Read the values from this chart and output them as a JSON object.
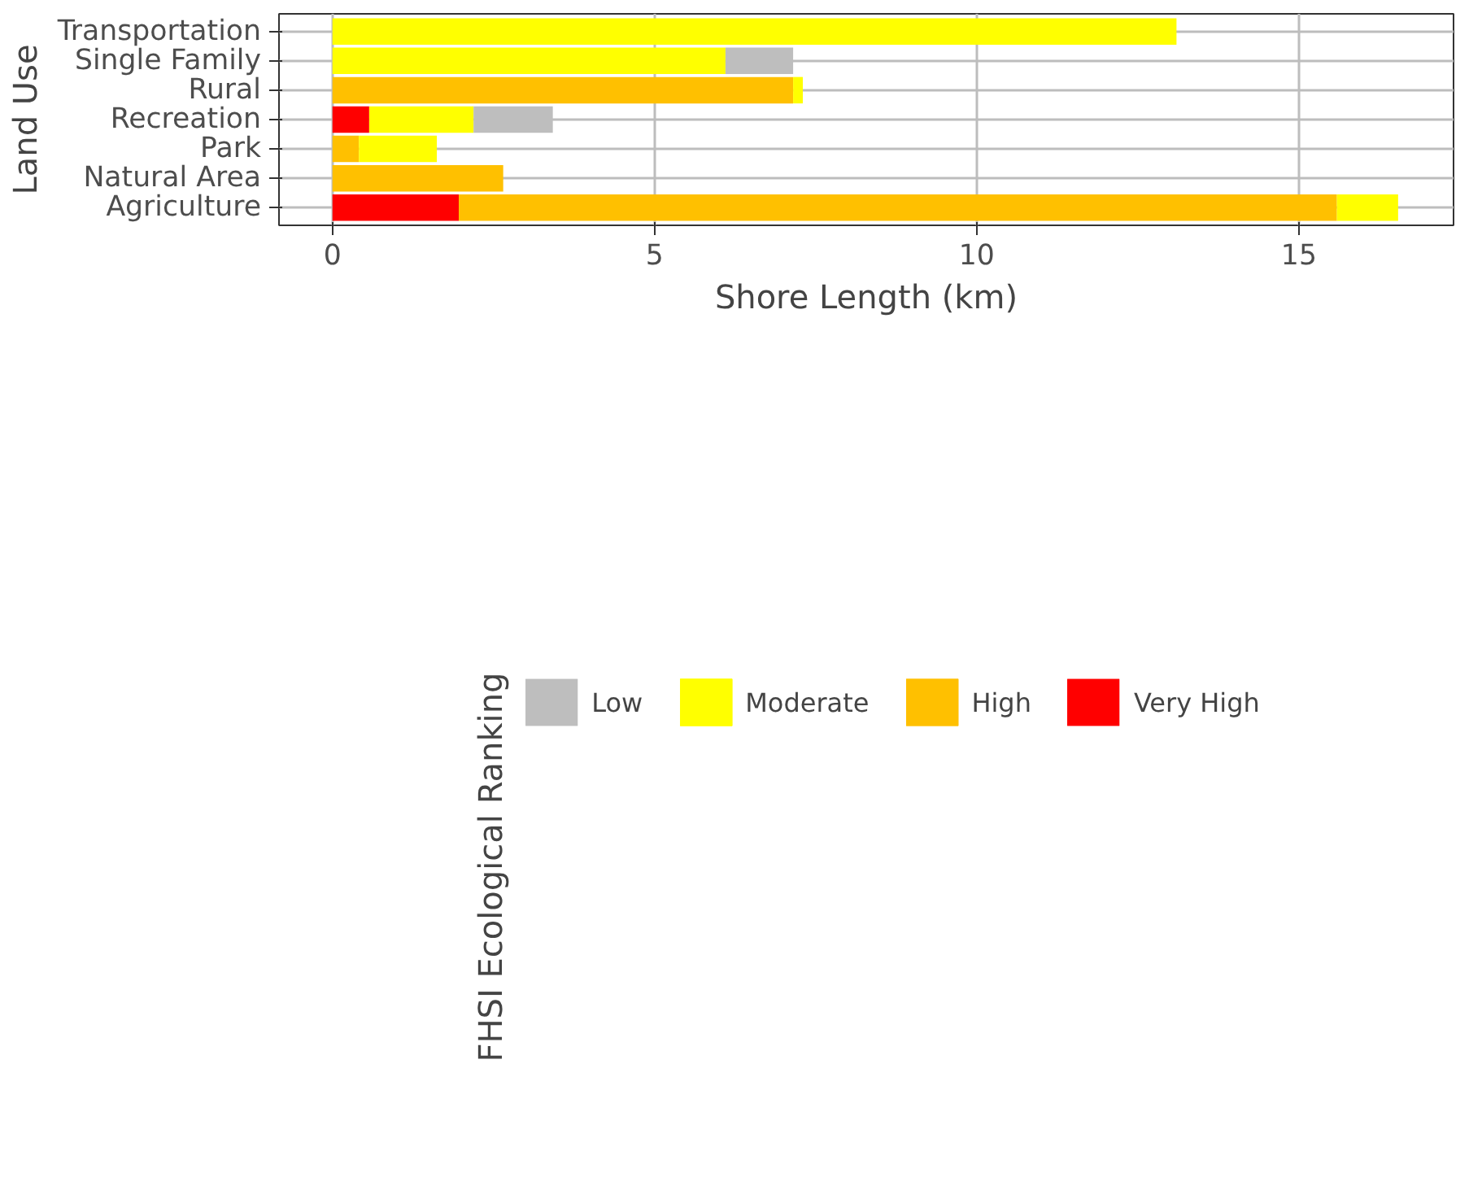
{
  "chart_data": {
    "type": "bar",
    "orientation": "horizontal",
    "stacked": true,
    "xlabel": "Shore Length (km)",
    "ylabel": "Land Use",
    "legend_title": "FHSI Ecological Ranking",
    "categories": [
      "Transportation",
      "Single Family",
      "Rural",
      "Recreation",
      "Park",
      "Natural Area",
      "Agriculture"
    ],
    "series": [
      {
        "name": "Very High",
        "color": "#ff0000",
        "values": [
          null,
          null,
          null,
          0.57,
          null,
          null,
          1.96
        ]
      },
      {
        "name": "High",
        "color": "#ffc000",
        "values": [
          null,
          null,
          7.15,
          null,
          0.41,
          2.65,
          13.63
        ]
      },
      {
        "name": "Moderate",
        "color": "#ffff00",
        "values": [
          13.1,
          6.1,
          0.15,
          1.62,
          1.21,
          null,
          0.95
        ]
      },
      {
        "name": "Low",
        "color": "#bebebe",
        "values": [
          null,
          1.05,
          null,
          1.23,
          null,
          null,
          null
        ]
      }
    ],
    "xlim": [
      -0.83,
      17.4
    ],
    "xticks": [
      0,
      5,
      10,
      15
    ],
    "grid": true,
    "legend": "bottom"
  }
}
